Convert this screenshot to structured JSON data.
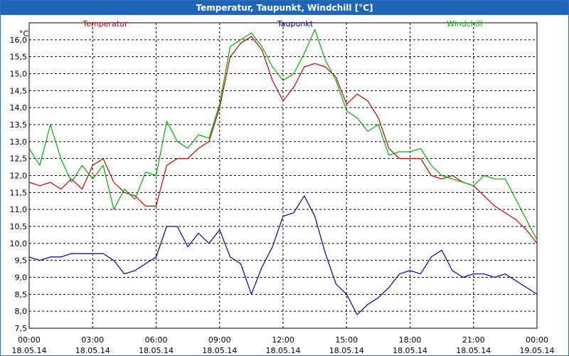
{
  "chart_data": {
    "type": "line",
    "title": "Temperatur, Taupunkt, Windchill [°C]",
    "ylabel": "°C",
    "ylim": [
      7.5,
      16.5
    ],
    "yticks": [
      "7,5",
      "8,0",
      "8,5",
      "9,0",
      "9,5",
      "10,0",
      "10,5",
      "11,0",
      "11,5",
      "12,0",
      "12,5",
      "13,0",
      "13,5",
      "14,0",
      "14,5",
      "15,0",
      "15,5",
      "16,0"
    ],
    "xlim": [
      0,
      24
    ],
    "xticks": [
      {
        "time": "00:00",
        "date": "18.05.14"
      },
      {
        "time": "03:00",
        "date": "18.05.14"
      },
      {
        "time": "06:00",
        "date": "18.05.14"
      },
      {
        "time": "09:00",
        "date": "18.05.14"
      },
      {
        "time": "12:00",
        "date": "18.05.14"
      },
      {
        "time": "15:00",
        "date": "18.05.14"
      },
      {
        "time": "18:00",
        "date": "18.05.14"
      },
      {
        "time": "21:00",
        "date": "18.05.14"
      },
      {
        "time": "00:00",
        "date": "19.05.14"
      }
    ],
    "grid": true,
    "x": [
      0,
      0.5,
      1,
      1.5,
      2,
      2.5,
      3,
      3.5,
      4,
      4.5,
      5,
      5.5,
      6,
      6.5,
      7,
      7.5,
      8,
      8.5,
      9,
      9.5,
      10,
      10.5,
      11,
      11.5,
      12,
      12.5,
      13,
      13.5,
      14,
      14.5,
      15,
      15.5,
      16,
      16.5,
      17,
      17.5,
      18,
      18.5,
      19,
      19.5,
      20,
      20.5,
      21,
      21.5,
      22,
      22.5,
      23,
      23.5,
      24
    ],
    "series": [
      {
        "name": "Temperatur",
        "color": "#cc0000",
        "values": [
          11.8,
          11.7,
          11.8,
          11.6,
          11.9,
          11.6,
          12.3,
          12.5,
          11.8,
          11.5,
          11.4,
          11.1,
          11.1,
          12.3,
          12.5,
          12.5,
          12.8,
          13.0,
          14.0,
          15.5,
          15.9,
          16.1,
          15.7,
          14.8,
          14.2,
          14.6,
          15.2,
          15.3,
          15.2,
          14.9,
          14.1,
          14.4,
          14.2,
          13.7,
          12.8,
          12.5,
          12.5,
          12.5,
          12.0,
          11.9,
          12.0,
          11.8,
          11.7,
          11.4,
          11.1,
          10.9,
          10.7,
          10.4,
          10.0
        ]
      },
      {
        "name": "Taupunkt",
        "color": "#00009e",
        "values": [
          9.6,
          9.5,
          9.6,
          9.6,
          9.7,
          9.7,
          9.7,
          9.7,
          9.5,
          9.1,
          9.2,
          9.4,
          9.6,
          10.5,
          10.5,
          9.9,
          10.3,
          10.0,
          10.4,
          9.6,
          9.4,
          8.5,
          9.3,
          9.9,
          10.8,
          10.9,
          11.4,
          10.8,
          9.7,
          8.8,
          8.5,
          7.9,
          8.2,
          8.4,
          8.7,
          9.1,
          9.2,
          9.1,
          9.6,
          9.8,
          9.2,
          9.0,
          9.1,
          9.1,
          9.0,
          9.1,
          8.9,
          8.7,
          8.5
        ]
      },
      {
        "name": "Windchill",
        "color": "#00b000",
        "values": [
          12.8,
          12.3,
          13.5,
          12.5,
          11.8,
          12.3,
          11.9,
          12.3,
          11.0,
          11.6,
          11.3,
          12.1,
          12.0,
          13.6,
          13.0,
          12.8,
          13.2,
          13.1,
          14.1,
          15.8,
          16.0,
          16.2,
          15.8,
          15.2,
          14.8,
          15.0,
          15.6,
          16.3,
          15.4,
          14.8,
          13.9,
          13.7,
          13.3,
          13.5,
          12.6,
          12.7,
          12.7,
          12.8,
          12.3,
          12.0,
          11.9,
          11.8,
          11.7,
          12.0,
          11.9,
          11.9,
          11.3,
          10.7,
          10.1
        ]
      }
    ]
  }
}
